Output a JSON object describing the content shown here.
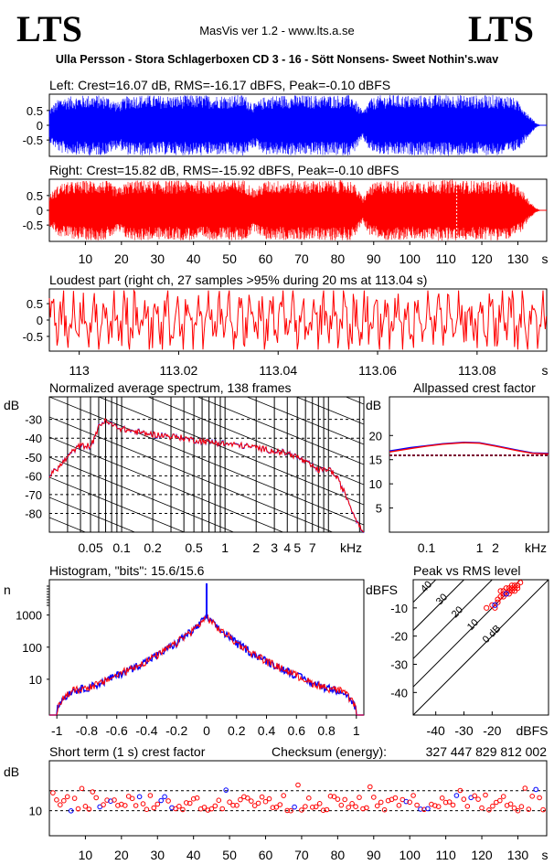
{
  "header": {
    "logo_left": "LTS",
    "logo_right": "LTS",
    "app_title": "MasVis ver 1.2 - www.lts.a.se",
    "file_name": "Ulla Persson - Stora Schlagerboxen CD 3 - 16 - Sött Nonsens- Sweet Nothin's.wav"
  },
  "colors": {
    "left": "#0000ff",
    "right": "#ff0000",
    "allpass_ref": "#7a0030",
    "text": "#000000"
  },
  "chart_data": [
    {
      "type": "area",
      "id": "left",
      "title": "Left: Crest=16.07 dB, RMS=-16.17 dBFS, Peak=-0.10 dBFS",
      "ylim": [
        -1,
        1
      ],
      "xlim": [
        0,
        138
      ],
      "yticks": [
        "0.5",
        "0",
        "-0.5"
      ],
      "x": [
        0,
        3,
        8,
        12,
        16,
        19,
        22,
        26,
        30,
        34,
        38,
        42,
        46,
        50,
        54,
        57,
        60,
        64,
        68,
        72,
        76,
        80,
        84,
        87,
        89,
        92,
        96,
        100,
        104,
        108,
        112,
        116,
        120,
        124,
        128,
        131,
        133,
        135,
        136,
        137,
        138
      ],
      "envelope": [
        0.55,
        0.9,
        0.95,
        0.98,
        0.95,
        0.75,
        0.97,
        0.98,
        0.96,
        0.95,
        0.97,
        0.98,
        0.96,
        0.97,
        0.99,
        0.7,
        0.95,
        0.97,
        0.98,
        0.96,
        0.97,
        0.98,
        0.97,
        0.45,
        0.85,
        0.97,
        0.98,
        0.96,
        0.97,
        0.98,
        0.99,
        0.97,
        0.96,
        0.98,
        0.95,
        0.7,
        0.35,
        0.08,
        0.02,
        0,
        0
      ]
    },
    {
      "type": "area",
      "id": "right",
      "title": "Right: Crest=15.82 dB, RMS=-15.92 dBFS, Peak=-0.10 dBFS",
      "ylim": [
        -1,
        1
      ],
      "xlim": [
        0,
        138
      ],
      "yticks": [
        "0.5",
        "0",
        "-0.5"
      ],
      "x": [
        0,
        3,
        8,
        12,
        16,
        19,
        22,
        26,
        30,
        34,
        38,
        42,
        46,
        50,
        54,
        57,
        60,
        64,
        68,
        72,
        76,
        80,
        84,
        87,
        89,
        92,
        96,
        100,
        104,
        108,
        112,
        116,
        120,
        124,
        128,
        131,
        133,
        135,
        136,
        137,
        138
      ],
      "envelope": [
        0.5,
        0.88,
        0.94,
        0.97,
        0.95,
        0.72,
        0.96,
        0.97,
        0.95,
        0.96,
        0.97,
        0.96,
        0.95,
        0.97,
        0.99,
        0.68,
        0.95,
        0.96,
        0.97,
        0.95,
        0.96,
        0.97,
        0.96,
        0.42,
        0.82,
        0.96,
        0.97,
        0.95,
        0.96,
        0.97,
        0.99,
        0.96,
        0.95,
        0.97,
        0.94,
        0.68,
        0.33,
        0.08,
        0.02,
        0,
        0
      ],
      "marker_x": 113.04,
      "xticks": [
        "10",
        "20",
        "30",
        "40",
        "50",
        "60",
        "70",
        "80",
        "90",
        "100",
        "110",
        "120",
        "130",
        "s"
      ]
    },
    {
      "type": "line",
      "id": "loudest",
      "title": "Loudest part (right ch, 27 samples >95% during 20 ms at 113.04 s)",
      "xlim": [
        112.994,
        113.094
      ],
      "ylim": [
        -0.95,
        0.95
      ],
      "yticks": [
        "0.5",
        "0",
        "-0.5"
      ],
      "xticks": [
        "113",
        "113.02",
        "113.04",
        "113.06",
        "113.08",
        "s"
      ],
      "xtick_values": [
        113,
        113.02,
        113.04,
        113.06,
        113.08
      ]
    },
    {
      "type": "line",
      "id": "spectrum",
      "title": "Normalized average spectrum, 138 frames",
      "ylabel": "dB",
      "yticks": [
        "-30",
        "-40",
        "-50",
        "-60",
        "-70",
        "-80"
      ],
      "ylim": [
        -90,
        -18
      ],
      "xticks": [
        "0.05",
        "0.1",
        "0.2",
        "0.5",
        "1",
        "2",
        "3",
        "4",
        "5",
        "7",
        "kHz"
      ],
      "xlim_hz": [
        20,
        22000
      ],
      "x_khz": [
        0.02,
        0.025,
        0.03,
        0.035,
        0.04,
        0.05,
        0.055,
        0.06,
        0.07,
        0.08,
        0.1,
        0.12,
        0.15,
        0.2,
        0.3,
        0.4,
        0.5,
        0.7,
        1,
        1.5,
        2,
        3,
        4,
        5,
        6,
        7,
        8,
        9,
        10,
        12,
        14,
        16,
        18,
        20,
        22
      ],
      "y_db": [
        -60,
        -55,
        -50,
        -46,
        -44,
        -44,
        -40,
        -33,
        -31,
        -33,
        -35,
        -36,
        -37,
        -38,
        -39,
        -40,
        -41,
        -42,
        -43,
        -44,
        -45,
        -47,
        -48,
        -50,
        -53,
        -55,
        -57,
        -57,
        -56,
        -61,
        -68,
        -75,
        -82,
        -86,
        -90
      ]
    },
    {
      "type": "line",
      "id": "allpass",
      "title": "Allpassed crest factor",
      "ylabel": "dB",
      "yticks": [
        "20",
        "15",
        "10",
        "5"
      ],
      "ylim": [
        0,
        28
      ],
      "xticks": [
        "0.1",
        "1",
        "2",
        "kHz"
      ],
      "x_khz": [
        0.02,
        0.05,
        0.1,
        0.2,
        0.5,
        1,
        2,
        5,
        10,
        20
      ],
      "series": [
        {
          "color": "#0000ff",
          "values": [
            16.8,
            17.5,
            17.9,
            18.3,
            18.6,
            18.5,
            17.9,
            17.0,
            16.4,
            16.3
          ]
        },
        {
          "color": "#ff0000",
          "values": [
            16.6,
            17.3,
            17.8,
            18.2,
            18.5,
            18.4,
            17.8,
            16.9,
            16.3,
            16.2
          ]
        }
      ],
      "reference": 15.9
    },
    {
      "type": "line",
      "id": "histogram",
      "title": "Histogram, \"bits\": 15.6/15.6",
      "ylabel": "n",
      "yticks": [
        "1000",
        "100",
        "10"
      ],
      "xticks": [
        "-1",
        "-0.8",
        "-0.6",
        "-0.4",
        "-0.2",
        "0",
        "0.2",
        "0.4",
        "0.6",
        "0.8",
        "1"
      ],
      "xlim": [
        -1.05,
        1.05
      ],
      "x": [
        -1,
        -0.9,
        -0.8,
        -0.7,
        -0.6,
        -0.5,
        -0.4,
        -0.3,
        -0.2,
        -0.1,
        -0.05,
        0,
        0.05,
        0.1,
        0.2,
        0.3,
        0.4,
        0.5,
        0.6,
        0.7,
        0.8,
        0.9,
        1
      ],
      "n": [
        1,
        4,
        5,
        7,
        12,
        20,
        33,
        60,
        120,
        280,
        450,
        800,
        450,
        280,
        120,
        60,
        33,
        20,
        12,
        7,
        5,
        4,
        1
      ]
    },
    {
      "type": "scatter",
      "id": "peakrms",
      "title": "Peak vs RMS level",
      "ylabel": "dBFS",
      "xlabel": "dBFS",
      "yticks": [
        "-10",
        "-20",
        "-30",
        "-40"
      ],
      "xticks": [
        "-40",
        "-30",
        "-20"
      ],
      "xlim": [
        -48,
        0
      ],
      "ylim": [
        -48,
        0
      ],
      "crest_lines": [
        "40",
        "30",
        "20",
        "10",
        "0 dB"
      ],
      "points": [
        [
          -20,
          -9
        ],
        [
          -19,
          -10
        ],
        [
          -18,
          -8
        ],
        [
          -17,
          -6
        ],
        [
          -16,
          -6
        ],
        [
          -15,
          -5
        ],
        [
          -14,
          -4
        ],
        [
          -13,
          -4
        ],
        [
          -12,
          -3
        ],
        [
          -16,
          -4
        ],
        [
          -14,
          -5
        ],
        [
          -12,
          -2
        ],
        [
          -11,
          -2
        ],
        [
          -15,
          -3
        ],
        [
          -13,
          -2
        ],
        [
          -18,
          -7
        ],
        [
          -10,
          -1
        ],
        [
          -22,
          -10
        ],
        [
          -17,
          -4
        ],
        [
          -12,
          -4
        ],
        [
          -11,
          -3
        ],
        [
          -14,
          -3
        ],
        [
          -13,
          -3
        ],
        [
          -16,
          -5
        ]
      ]
    },
    {
      "type": "scatter",
      "id": "shortcrest",
      "title": "Short term (1 s) crest factor",
      "checksum_label": "Checksum (energy):",
      "checksum_value": "327 447 829 812 002",
      "ylabel": "dB",
      "yticks": [
        "10"
      ],
      "ylim": [
        5,
        20
      ],
      "xlim": [
        0,
        138
      ],
      "xticks": [
        "10",
        "20",
        "30",
        "40",
        "50",
        "60",
        "70",
        "80",
        "90",
        "100",
        "110",
        "120",
        "130",
        "s"
      ],
      "dashed_levels": [
        10,
        14
      ]
    }
  ]
}
